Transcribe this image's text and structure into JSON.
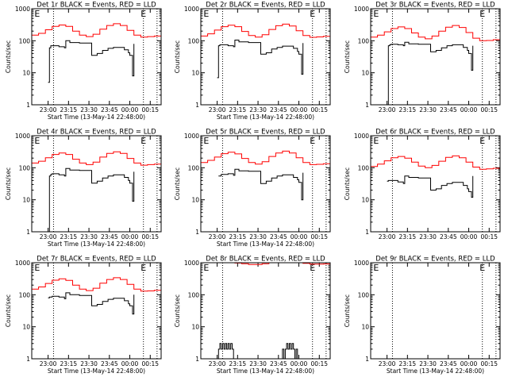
{
  "chart_data": [
    {
      "type": "line",
      "title": "Det 1r BLACK = Events, RED = LLD",
      "xlabel": "Start Time (13-May-14 22:48:00)",
      "ylabel": "Counts/sec",
      "yscale": "log",
      "ylim": [
        1,
        1000
      ],
      "yticks": [
        "1",
        "10",
        "100",
        "1000"
      ],
      "xlim_minutes": [
        0,
        95
      ],
      "xticks": [
        "23:00",
        "23:15",
        "23:30",
        "23:45",
        "00:00",
        "00:15"
      ],
      "markers": [
        {
          "label": "E",
          "x_minutes": 4
        },
        {
          "label": "E",
          "x_minutes": 82
        }
      ],
      "dotted_lines_minutes": [
        16,
        82,
        92
      ],
      "series": [
        {
          "color": "#ff0000",
          "x": [
            0,
            5,
            10,
            15,
            20,
            25,
            30,
            35,
            40,
            45,
            50,
            55,
            60,
            65,
            70,
            75,
            80,
            85,
            90,
            95
          ],
          "values": [
            150,
            170,
            220,
            280,
            310,
            280,
            200,
            150,
            135,
            160,
            230,
            300,
            340,
            300,
            210,
            150,
            130,
            135,
            140,
            145
          ]
        },
        {
          "color": "#000000",
          "x": [
            12,
            13,
            14,
            15,
            20,
            24,
            25,
            28,
            35,
            40,
            43,
            44,
            48,
            52,
            56,
            60,
            64,
            68,
            71,
            72,
            74,
            75
          ],
          "values": [
            5,
            60,
            70,
            70,
            65,
            60,
            100,
            88,
            85,
            85,
            85,
            35,
            40,
            50,
            58,
            62,
            62,
            52,
            42,
            35,
            8,
            80
          ]
        }
      ]
    },
    {
      "type": "line",
      "title": "Det 2r BLACK = Events, RED = LLD",
      "xlabel": "Start Time (13-May-14 22:48:00)",
      "ylabel": "Counts/sec",
      "yscale": "log",
      "ylim": [
        1,
        1000
      ],
      "yticks": [
        "1",
        "10",
        "100",
        "1000"
      ],
      "xlim_minutes": [
        0,
        95
      ],
      "xticks": [
        "23:00",
        "23:15",
        "23:30",
        "23:45",
        "00:00",
        "00:15"
      ],
      "markers": [
        {
          "label": "E",
          "x_minutes": 4
        },
        {
          "label": "E",
          "x_minutes": 82
        }
      ],
      "dotted_lines_minutes": [
        16,
        82,
        92
      ],
      "series": [
        {
          "color": "#ff0000",
          "x": [
            0,
            5,
            10,
            15,
            20,
            25,
            30,
            35,
            40,
            45,
            50,
            55,
            60,
            65,
            70,
            75,
            80,
            85,
            90,
            95
          ],
          "values": [
            140,
            165,
            215,
            275,
            305,
            275,
            195,
            145,
            130,
            155,
            225,
            295,
            330,
            290,
            205,
            145,
            128,
            132,
            138,
            142
          ]
        },
        {
          "color": "#000000",
          "x": [
            12,
            13,
            14,
            15,
            20,
            24,
            25,
            28,
            35,
            40,
            43,
            44,
            48,
            52,
            56,
            60,
            64,
            68,
            71,
            72,
            74,
            75
          ],
          "values": [
            7,
            70,
            75,
            75,
            70,
            65,
            105,
            92,
            88,
            88,
            88,
            38,
            42,
            55,
            62,
            68,
            68,
            58,
            46,
            38,
            9,
            85
          ]
        }
      ]
    },
    {
      "type": "line",
      "title": "Det 3r BLACK = Events, RED = LLD",
      "xlabel": "",
      "ylabel": "Counts/sec",
      "yscale": "log",
      "ylim": [
        1,
        1000
      ],
      "yticks": [
        "1",
        "10",
        "100",
        "1000"
      ],
      "xlim_minutes": [
        0,
        95
      ],
      "xticks": [
        "23:00",
        "23:15",
        "23:30",
        "23:45",
        "00:00",
        "00:15"
      ],
      "markers": [
        {
          "label": "E",
          "x_minutes": 4
        },
        {
          "label": "E",
          "x_minutes": 82
        }
      ],
      "dotted_lines_minutes": [
        16,
        82,
        92
      ],
      "series": [
        {
          "color": "#ff0000",
          "x": [
            0,
            5,
            10,
            15,
            20,
            25,
            30,
            35,
            40,
            45,
            50,
            55,
            60,
            65,
            70,
            75,
            80,
            85,
            90,
            95
          ],
          "values": [
            130,
            150,
            190,
            240,
            270,
            240,
            175,
            130,
            115,
            140,
            200,
            265,
            300,
            260,
            180,
            120,
            100,
            102,
            108,
            112
          ]
        },
        {
          "color": "#000000",
          "x": [
            12,
            13,
            14,
            15,
            20,
            24,
            25,
            28,
            35,
            40,
            43,
            44,
            48,
            52,
            56,
            60,
            64,
            68,
            71,
            72,
            74,
            75
          ],
          "values": [
            1,
            70,
            75,
            78,
            75,
            70,
            90,
            80,
            78,
            78,
            78,
            45,
            50,
            60,
            70,
            75,
            75,
            62,
            50,
            40,
            12,
            70
          ]
        }
      ]
    },
    {
      "type": "line",
      "title": "Det 4r BLACK = Events, RED = LLD",
      "xlabel": "Start Time (13-May-14 22:48:00)",
      "ylabel": "Counts/sec",
      "yscale": "log",
      "ylim": [
        1,
        1000
      ],
      "yticks": [
        "1",
        "10",
        "100",
        "1000"
      ],
      "xlim_minutes": [
        0,
        95
      ],
      "xticks": [
        "23:00",
        "23:15",
        "23:30",
        "23:45",
        "00:00",
        "00:15"
      ],
      "markers": [
        {
          "label": "E",
          "x_minutes": 4
        },
        {
          "label": "E",
          "x_minutes": 82
        }
      ],
      "dotted_lines_minutes": [
        16,
        82,
        92
      ],
      "series": [
        {
          "color": "#ff0000",
          "x": [
            0,
            5,
            10,
            15,
            20,
            25,
            30,
            35,
            40,
            45,
            50,
            55,
            60,
            65,
            70,
            75,
            80,
            85,
            90,
            95
          ],
          "values": [
            140,
            160,
            205,
            260,
            290,
            260,
            185,
            140,
            125,
            150,
            215,
            280,
            315,
            280,
            195,
            140,
            120,
            125,
            130,
            135
          ]
        },
        {
          "color": "#000000",
          "x": [
            12,
            13,
            14,
            15,
            20,
            24,
            25,
            28,
            35,
            40,
            43,
            44,
            48,
            52,
            56,
            60,
            64,
            68,
            71,
            72,
            74,
            75
          ],
          "values": [
            1,
            55,
            62,
            65,
            60,
            55,
            95,
            85,
            82,
            82,
            82,
            33,
            38,
            48,
            55,
            60,
            60,
            50,
            40,
            33,
            9,
            75
          ]
        }
      ]
    },
    {
      "type": "line",
      "title": "Det 5r BLACK = Events, RED = LLD",
      "xlabel": "Start Time (13-May-14 22:48:00)",
      "ylabel": "Counts/sec",
      "yscale": "log",
      "ylim": [
        1,
        1000
      ],
      "yticks": [
        "1",
        "10",
        "100",
        "1000"
      ],
      "xlim_minutes": [
        0,
        95
      ],
      "xticks": [
        "23:00",
        "23:15",
        "23:30",
        "23:45",
        "00:00",
        "00:15"
      ],
      "markers": [
        {
          "label": "E",
          "x_minutes": 4
        },
        {
          "label": "E",
          "x_minutes": 82
        }
      ],
      "dotted_lines_minutes": [
        16,
        82,
        92
      ],
      "series": [
        {
          "color": "#ff0000",
          "x": [
            0,
            5,
            10,
            15,
            20,
            25,
            30,
            35,
            40,
            45,
            50,
            55,
            60,
            65,
            70,
            75,
            80,
            85,
            90,
            95
          ],
          "values": [
            145,
            170,
            215,
            275,
            305,
            270,
            195,
            145,
            130,
            155,
            225,
            290,
            330,
            290,
            205,
            145,
            125,
            128,
            133,
            138
          ]
        },
        {
          "color": "#000000",
          "x": [
            13,
            15,
            20,
            24,
            25,
            28,
            35,
            40,
            43,
            44,
            48,
            52,
            56,
            60,
            64,
            68,
            71,
            72,
            74,
            75
          ],
          "values": [
            55,
            62,
            65,
            58,
            90,
            80,
            78,
            78,
            78,
            32,
            38,
            48,
            55,
            60,
            60,
            50,
            42,
            35,
            10,
            70
          ]
        }
      ]
    },
    {
      "type": "line",
      "title": "Det 6r BLACK = Events, RED = LLD",
      "xlabel": "",
      "ylabel": "Counts/sec",
      "yscale": "log",
      "ylim": [
        1,
        1000
      ],
      "yticks": [
        "1",
        "10",
        "100",
        "1000"
      ],
      "xlim_minutes": [
        0,
        95
      ],
      "xticks": [
        "23:00",
        "23:15",
        "23:30",
        "23:45",
        "00:00",
        "00:15"
      ],
      "markers": [
        {
          "label": "E",
          "x_minutes": 4
        },
        {
          "label": "E",
          "x_minutes": 82
        }
      ],
      "dotted_lines_minutes": [
        16,
        82,
        92
      ],
      "series": [
        {
          "color": "#ff0000",
          "x": [
            0,
            5,
            10,
            15,
            20,
            25,
            30,
            35,
            40,
            45,
            50,
            55,
            60,
            65,
            70,
            75,
            80,
            85,
            90,
            95
          ],
          "values": [
            110,
            130,
            165,
            205,
            225,
            200,
            150,
            112,
            100,
            118,
            160,
            210,
            235,
            205,
            150,
            105,
            90,
            92,
            96,
            100
          ]
        },
        {
          "color": "#000000",
          "x": [
            12,
            13,
            15,
            20,
            24,
            25,
            28,
            35,
            40,
            43,
            44,
            48,
            52,
            56,
            60,
            64,
            68,
            71,
            72,
            74,
            75
          ],
          "values": [
            38,
            40,
            40,
            36,
            32,
            55,
            50,
            48,
            48,
            48,
            20,
            22,
            28,
            32,
            35,
            35,
            28,
            22,
            18,
            12,
            55
          ]
        }
      ]
    },
    {
      "type": "line",
      "title": "Det 7r BLACK = Events, RED = LLD",
      "xlabel": "Start Time (13-May-14 22:48:00)",
      "ylabel": "Counts/sec",
      "yscale": "log",
      "ylim": [
        1,
        1000
      ],
      "yticks": [
        "1",
        "10",
        "100",
        "1000"
      ],
      "xlim_minutes": [
        0,
        95
      ],
      "xticks": [
        "23:00",
        "23:15",
        "23:30",
        "23:45",
        "00:00",
        "00:15"
      ],
      "markers": [
        {
          "label": "E",
          "x_minutes": 4
        },
        {
          "label": "E",
          "x_minutes": 82
        }
      ],
      "dotted_lines_minutes": [
        16,
        82,
        92
      ],
      "series": [
        {
          "color": "#ff0000",
          "x": [
            0,
            5,
            10,
            15,
            20,
            25,
            30,
            35,
            40,
            45,
            50,
            55,
            60,
            65,
            70,
            75,
            80,
            85,
            90,
            95
          ],
          "values": [
            150,
            175,
            225,
            285,
            315,
            280,
            200,
            150,
            135,
            160,
            230,
            300,
            340,
            300,
            210,
            150,
            130,
            132,
            138,
            142
          ]
        },
        {
          "color": "#000000",
          "x": [
            12,
            13,
            15,
            20,
            24,
            25,
            28,
            35,
            40,
            43,
            44,
            48,
            52,
            56,
            60,
            64,
            68,
            71,
            72,
            74,
            75
          ],
          "values": [
            80,
            85,
            90,
            85,
            75,
            115,
            100,
            95,
            95,
            95,
            45,
            50,
            62,
            72,
            78,
            78,
            65,
            52,
            45,
            25,
            100
          ]
        }
      ]
    },
    {
      "type": "line",
      "title": "Det 8r BLACK = Events, RED = LLD",
      "xlabel": "Start Time (13-May-14 22:48:00)",
      "ylabel": "Counts/sec",
      "yscale": "log",
      "ylim": [
        1,
        1000
      ],
      "yticks": [
        "1",
        "10",
        "100",
        "1000"
      ],
      "xlim_minutes": [
        0,
        95
      ],
      "xticks": [
        "23:00",
        "23:15",
        "23:30",
        "23:45",
        "00:00",
        "00:15"
      ],
      "markers": [
        {
          "label": "E",
          "x_minutes": 4
        },
        {
          "label": "E",
          "x_minutes": 82
        }
      ],
      "dotted_lines_minutes": [
        16,
        82,
        92
      ],
      "series": [
        {
          "color": "#ff0000",
          "x": [
            20,
            25,
            30,
            35,
            40,
            45,
            50,
            55,
            60,
            65,
            70,
            75,
            80,
            85,
            90,
            95
          ],
          "values": [
            1000,
            980,
            930,
            880,
            880,
            930,
            1000,
            1000,
            1000,
            1000,
            1000,
            960,
            910,
            900,
            920,
            960
          ]
        },
        {
          "color": "#000000",
          "x": [
            12,
            13,
            14,
            15,
            16,
            17,
            18,
            19,
            20,
            21,
            22,
            23,
            24,
            25,
            59,
            60,
            61,
            62,
            63,
            64,
            65,
            66,
            67,
            68,
            69,
            70,
            71,
            72
          ],
          "values": [
            1,
            2,
            3,
            2,
            3,
            2,
            3,
            2,
            3,
            2,
            3,
            2,
            1,
            1,
            1,
            2,
            1,
            2,
            3,
            2,
            3,
            2,
            3,
            2,
            1,
            2,
            1,
            1
          ]
        }
      ]
    },
    {
      "type": "line",
      "title": "Det 9r BLACK = Events, RED = LLD",
      "xlabel": "Start Time (13-May-14 22:48:00)",
      "ylabel": "Counts/sec",
      "yscale": "log",
      "ylim": [
        1,
        1000
      ],
      "yticks": [
        "1",
        "10",
        "100",
        "1000"
      ],
      "xlim_minutes": [
        0,
        95
      ],
      "xticks": [
        "23:00",
        "23:15",
        "23:30",
        "23:45",
        "00:00",
        "00:15"
      ],
      "markers": [
        {
          "label": "E",
          "x_minutes": 4
        },
        {
          "label": "E",
          "x_minutes": 82
        }
      ],
      "dotted_lines_minutes": [
        16,
        82,
        92
      ],
      "series": []
    }
  ]
}
